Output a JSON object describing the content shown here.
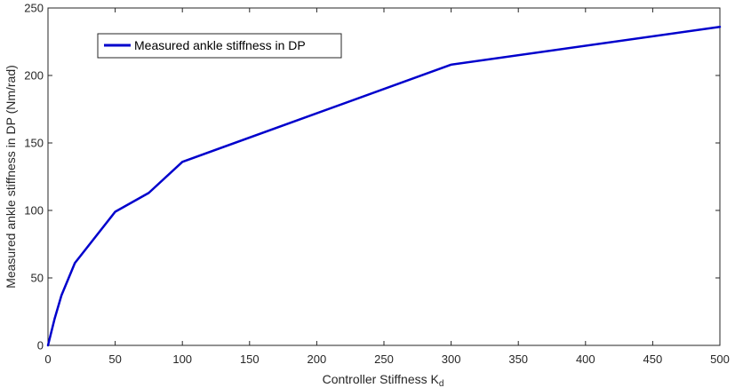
{
  "chart_data": {
    "type": "line",
    "xlabel": "Controller Stiffness  K",
    "xlabel_subscript": "d",
    "ylabel": "Measured ankle stiffness in DP (Nm/rad)",
    "xlim": [
      0,
      500
    ],
    "ylim": [
      0,
      250
    ],
    "xticks": [
      0,
      50,
      100,
      150,
      200,
      250,
      300,
      350,
      400,
      450,
      500
    ],
    "yticks": [
      0,
      50,
      100,
      150,
      200,
      250
    ],
    "grid": false,
    "legend_position": "top-left",
    "series": [
      {
        "name": "Measured ankle stiffness in DP",
        "color": "#0000cc",
        "x": [
          0,
          2,
          5,
          10,
          20,
          50,
          75,
          100,
          300,
          500
        ],
        "y": [
          0,
          8,
          20,
          37,
          61,
          99,
          113,
          136,
          208,
          236
        ]
      }
    ]
  }
}
